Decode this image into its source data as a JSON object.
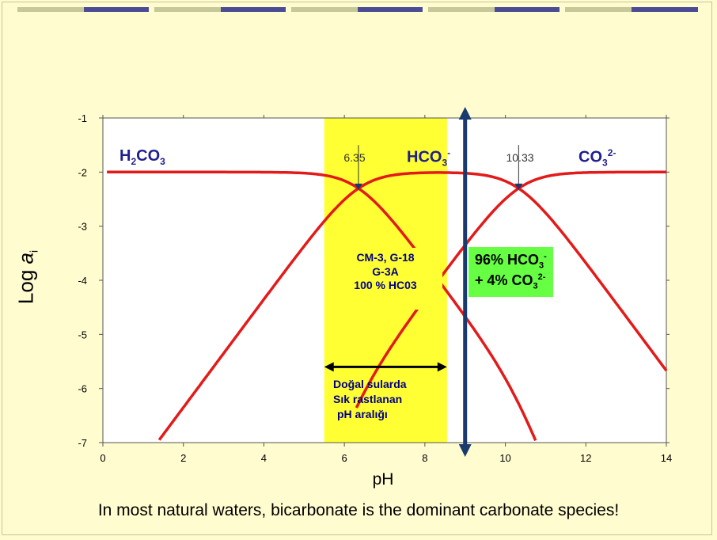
{
  "colors": {
    "background": "#fffccf",
    "curve": "#e31a1a",
    "highlight": "#ffff33",
    "green_box": "#66ff44",
    "arrow": "#1a3a6e",
    "species_label": "#1f1f8f",
    "deco_light": "#c7c89a",
    "deco_dark": "#4b4b96"
  },
  "chart_data": {
    "type": "line",
    "xlabel": "pH",
    "ylabel_main": "Log ",
    "ylabel_italic": "a",
    "ylabel_sub": "i",
    "xlim": [
      0,
      14
    ],
    "ylim": [
      -7,
      -1
    ],
    "x_ticks": [
      "0",
      "2",
      "4",
      "6",
      "8",
      "10",
      "12",
      "14"
    ],
    "y_ticks": [
      "-1",
      "-2",
      "-3",
      "-4",
      "-5",
      "-6",
      "-7"
    ],
    "pK1": 6.35,
    "pK2": 10.33,
    "total_log": -2,
    "series": [
      {
        "name": "H2CO3",
        "x_range": [
          0.1,
          10.8
        ]
      },
      {
        "name": "HCO3-",
        "x_range": [
          1.35,
          14
        ]
      },
      {
        "name": "CO3 2-",
        "x_range": [
          6.3,
          14
        ]
      }
    ],
    "annotations": {
      "pk1_label": "6.35",
      "pk2_label": "10.33",
      "species": {
        "h2co3": {
          "main": "H",
          "sub": "2",
          "rest": "CO",
          "sub2": "3"
        },
        "hco3": {
          "main": "HCO",
          "sub": "3",
          "sup": "-"
        },
        "co3": {
          "main": "CO",
          "sub": "3",
          "sup": "2-"
        }
      },
      "highlight_range": [
        5.5,
        8.55
      ],
      "vertical_marker_x": 9
    }
  },
  "boxes": {
    "yellow_line1": "CM-3, G-18",
    "yellow_line2": "G-3A",
    "yellow_line3": "100 % HC03",
    "green_line1_main": "96% HCO",
    "green_line1_sub": "3",
    "green_line1_sup": "-",
    "green_line2_main": "+ 4% CO",
    "green_line2_sub": "3",
    "green_line2_sup": "2-"
  },
  "range_note": {
    "line1": "Doğal sularda",
    "line2": "Sık rastlanan",
    "line3": "pH aralığı"
  },
  "caption": "In most natural waters, bicarbonate is the dominant carbonate species!"
}
